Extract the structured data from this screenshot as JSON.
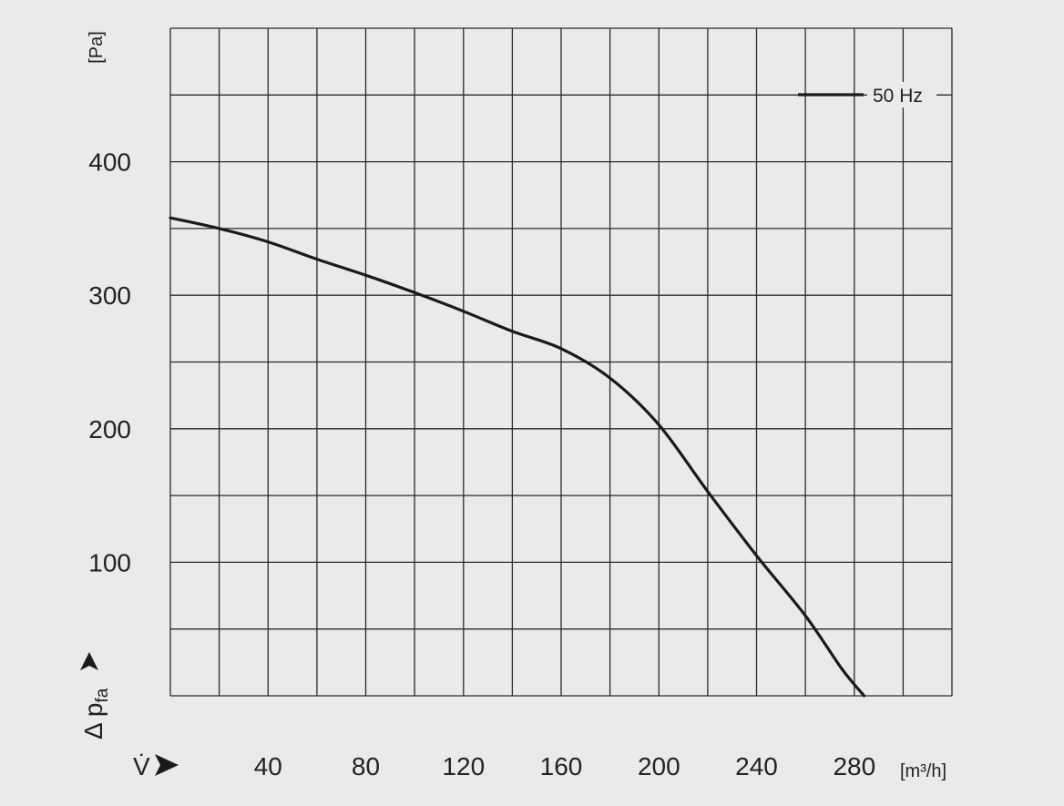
{
  "chart_data": {
    "type": "line",
    "xlim": [
      0,
      320
    ],
    "ylim": [
      0,
      500
    ],
    "x_ticks": [
      40,
      80,
      120,
      160,
      200,
      240,
      280
    ],
    "y_ticks": [
      100,
      200,
      300,
      400
    ],
    "x_grid_step": 20,
    "y_grid_step": 50,
    "grid": true,
    "legend_position": "top-right",
    "ylabel_unit": "[Pa]",
    "xlabel_unit": "[m³/h]",
    "ylabel_symbol": "Δ p",
    "ylabel_subscript": "fa",
    "xlabel_symbol": "V̇",
    "series": [
      {
        "name": "50 Hz",
        "color": "#1a1a1a",
        "x": [
          0,
          20,
          40,
          60,
          80,
          100,
          120,
          140,
          160,
          180,
          200,
          220,
          240,
          260,
          275,
          284
        ],
        "y": [
          358,
          350,
          340,
          327,
          315,
          302,
          288,
          273,
          260,
          238,
          203,
          153,
          105,
          60,
          20,
          0
        ]
      }
    ]
  }
}
